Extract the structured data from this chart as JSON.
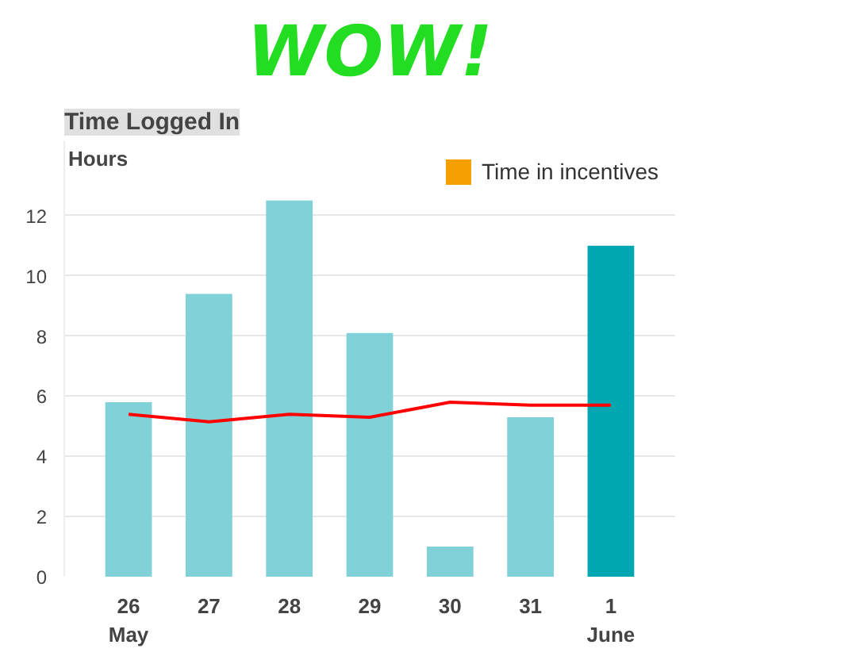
{
  "chart_data": {
    "type": "bar",
    "title": "Time Logged In",
    "ylabel": "Hours",
    "annotations": [
      "WOW!"
    ],
    "categories": [
      "26\nMay",
      "27",
      "28",
      "29",
      "30",
      "31",
      "1\nJune"
    ],
    "series": [
      {
        "colors": [
          "#80d2d8",
          "#80d2d8",
          "#80d2d8",
          "#80d2d8",
          "#80d2d8",
          "#80d2d8",
          "#00a6b0"
        ],
        "values": [
          5.8,
          9.4,
          12.5,
          8.1,
          1.0,
          5.3,
          11.0
        ]
      },
      {
        "name": "Time in incentives",
        "color": "#f5a000",
        "values": [
          null,
          null,
          null,
          null,
          null,
          null,
          null
        ]
      },
      {
        "type": "line",
        "color": "#ff0000",
        "values": [
          5.4,
          5.15,
          5.4,
          5.3,
          5.8,
          5.7,
          5.7
        ]
      }
    ],
    "ylim": [
      0,
      14.5
    ],
    "yticks": [
      0,
      2,
      4,
      6,
      8,
      10,
      12
    ],
    "grid": "y",
    "legend": "top right"
  }
}
